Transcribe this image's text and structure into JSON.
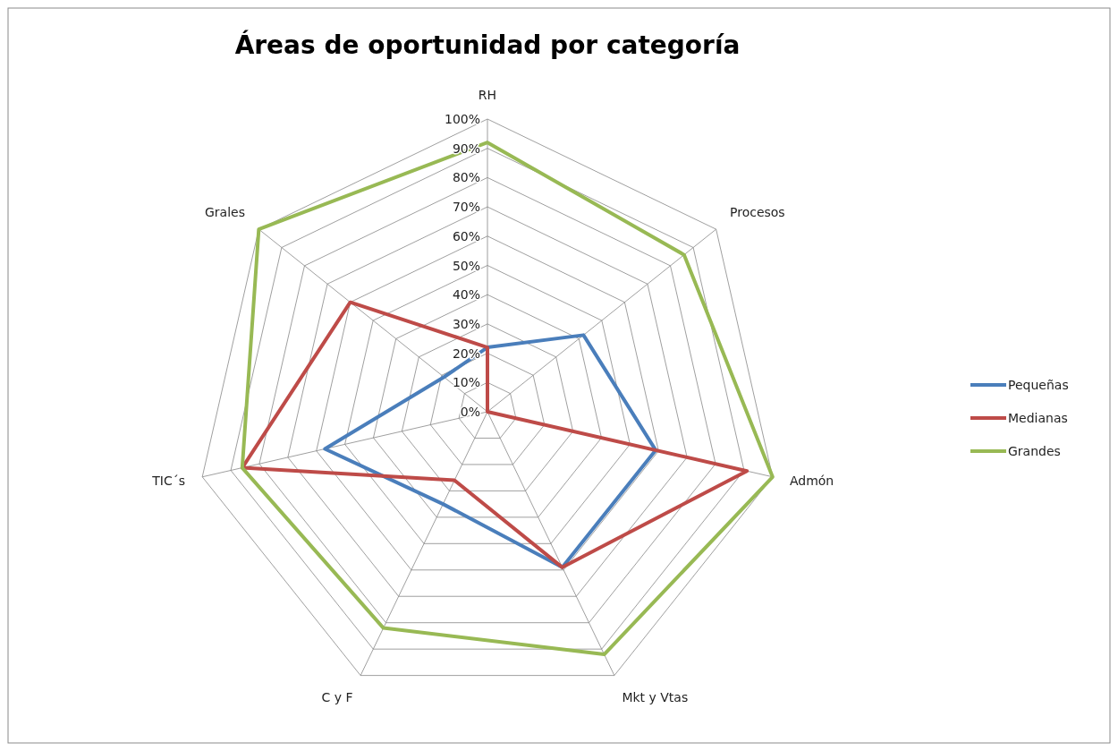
{
  "chart_data": {
    "type": "radar",
    "title": "Áreas de oportunidad por categoría",
    "categories": [
      "RH",
      "Procesos",
      "Admón",
      "Mkt y Vtas",
      "C y F",
      "TIC´s",
      "Grales"
    ],
    "series": [
      {
        "name": "Pequeñas",
        "color": "#4a7ebb",
        "values": [
          22,
          42,
          59,
          59,
          35,
          57,
          19
        ]
      },
      {
        "name": "Medianas",
        "color": "#be4b48",
        "values": [
          22,
          0,
          91,
          59,
          26,
          86,
          60
        ]
      },
      {
        "name": "Grandes",
        "color": "#98b954",
        "values": [
          92,
          86,
          100,
          92,
          82,
          86,
          100
        ]
      }
    ],
    "ylim": [
      0,
      100
    ],
    "yticks": [
      {
        "value": 0,
        "label": "0%"
      },
      {
        "value": 10,
        "label": "10%"
      },
      {
        "value": 20,
        "label": "20%"
      },
      {
        "value": 30,
        "label": "30%"
      },
      {
        "value": 40,
        "label": "40%"
      },
      {
        "value": 50,
        "label": "50%"
      },
      {
        "value": 60,
        "label": "60%"
      },
      {
        "value": 70,
        "label": "70%"
      },
      {
        "value": 80,
        "label": "80%"
      },
      {
        "value": 90,
        "label": "90%"
      },
      {
        "value": 100,
        "label": "100%"
      }
    ],
    "grid": true,
    "legend": "right",
    "marker": "none"
  }
}
